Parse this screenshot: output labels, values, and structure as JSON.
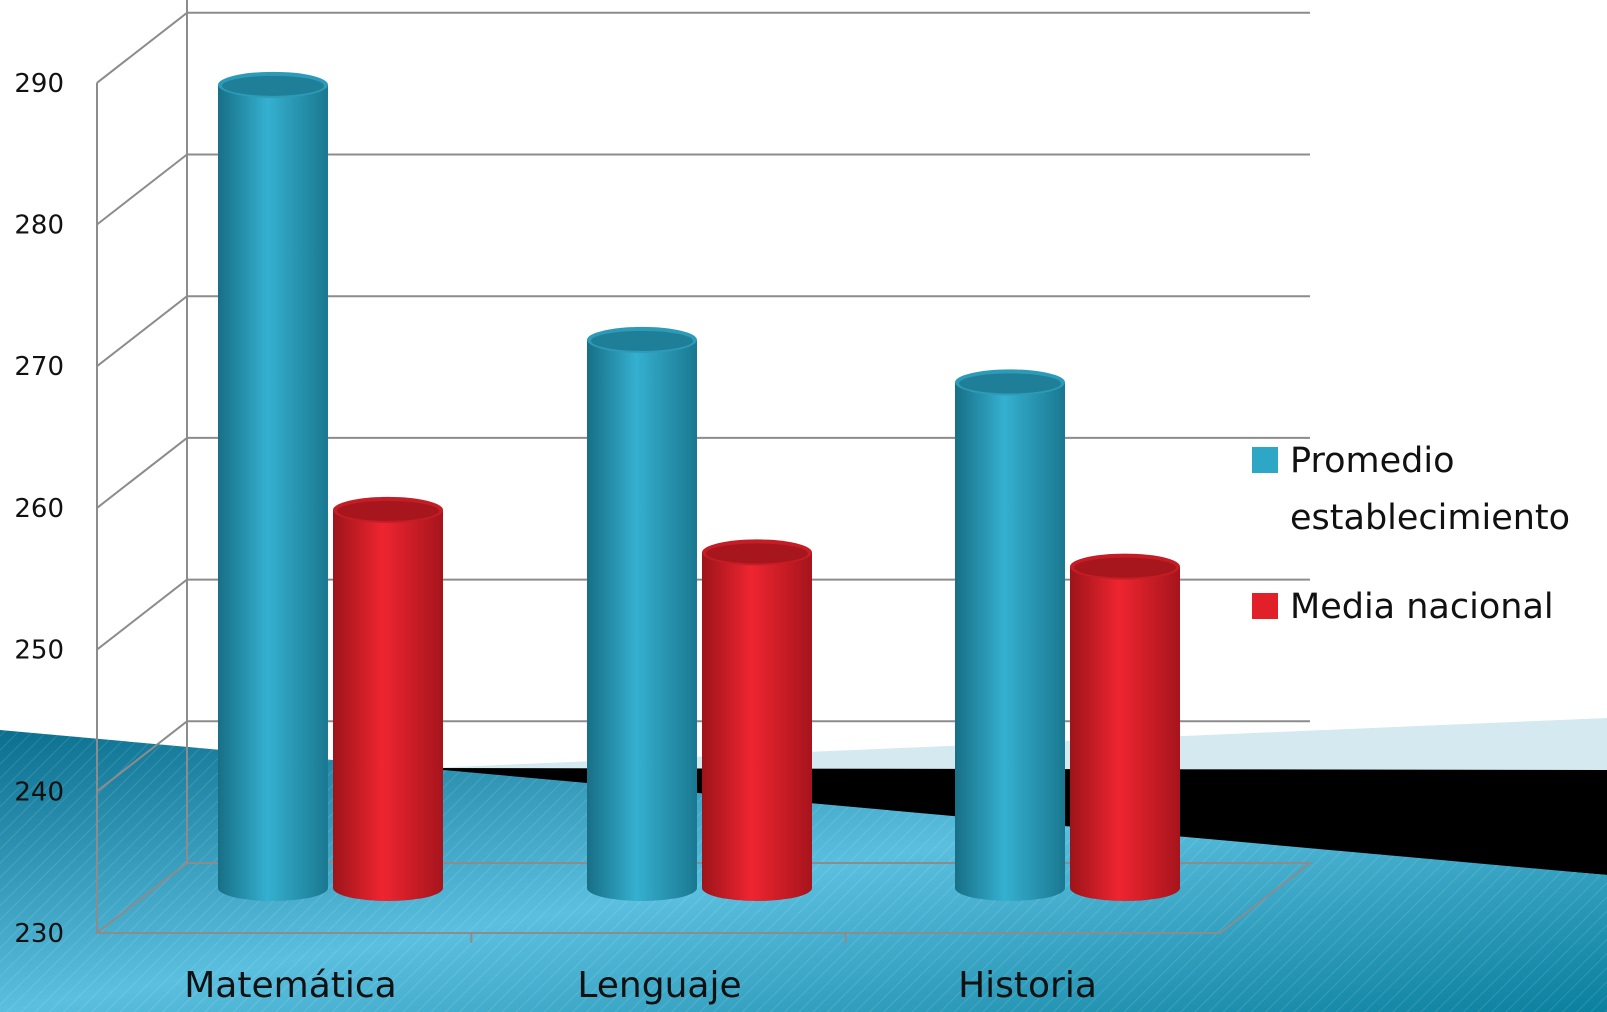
{
  "chart_data": {
    "type": "bar",
    "categories": [
      "Matemática",
      "Lenguaje",
      "Historia"
    ],
    "series": [
      {
        "name": "Promedio establecimiento",
        "values": [
          284,
          266,
          263
        ],
        "color": "#2ea6c6"
      },
      {
        "name": "Media nacional",
        "values": [
          254,
          251,
          250
        ],
        "color": "#e2202a"
      }
    ],
    "ylim": [
      230,
      290
    ],
    "yticks": [
      "230",
      "240",
      "250",
      "260",
      "270",
      "280",
      "290"
    ],
    "legend": {
      "placement": "right",
      "items": [
        {
          "lines": [
            "Promedio",
            "establecimiento"
          ],
          "color": "#2ea6c6"
        },
        {
          "lines": [
            "Media nacional"
          ],
          "color": "#e2202a"
        }
      ]
    },
    "grid": true
  },
  "colors": {
    "background_band_dark": "#0a7a9a",
    "background_band_light": "#4fb6d6",
    "grid": "#8c8c8c"
  }
}
